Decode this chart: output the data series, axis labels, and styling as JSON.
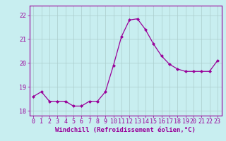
{
  "x": [
    0,
    1,
    2,
    3,
    4,
    5,
    6,
    7,
    8,
    9,
    10,
    11,
    12,
    13,
    14,
    15,
    16,
    17,
    18,
    19,
    20,
    21,
    22,
    23
  ],
  "y": [
    18.6,
    18.8,
    18.4,
    18.4,
    18.4,
    18.2,
    18.2,
    18.4,
    18.4,
    18.8,
    19.9,
    21.1,
    21.8,
    21.85,
    21.4,
    20.8,
    20.3,
    19.95,
    19.75,
    19.65,
    19.65,
    19.65,
    19.65,
    20.1
  ],
  "line_color": "#990099",
  "marker": "D",
  "marker_size": 2.0,
  "bg_color": "#c8eef0",
  "grid_color": "#aacccc",
  "xlabel": "Windchill (Refroidissement éolien,°C)",
  "ylim": [
    17.8,
    22.4
  ],
  "xlim": [
    -0.5,
    23.5
  ],
  "yticks": [
    18,
    19,
    20,
    21,
    22
  ],
  "xticks": [
    0,
    1,
    2,
    3,
    4,
    5,
    6,
    7,
    8,
    9,
    10,
    11,
    12,
    13,
    14,
    15,
    16,
    17,
    18,
    19,
    20,
    21,
    22,
    23
  ],
  "xlabel_fontsize": 6.5,
  "tick_fontsize": 6.0
}
